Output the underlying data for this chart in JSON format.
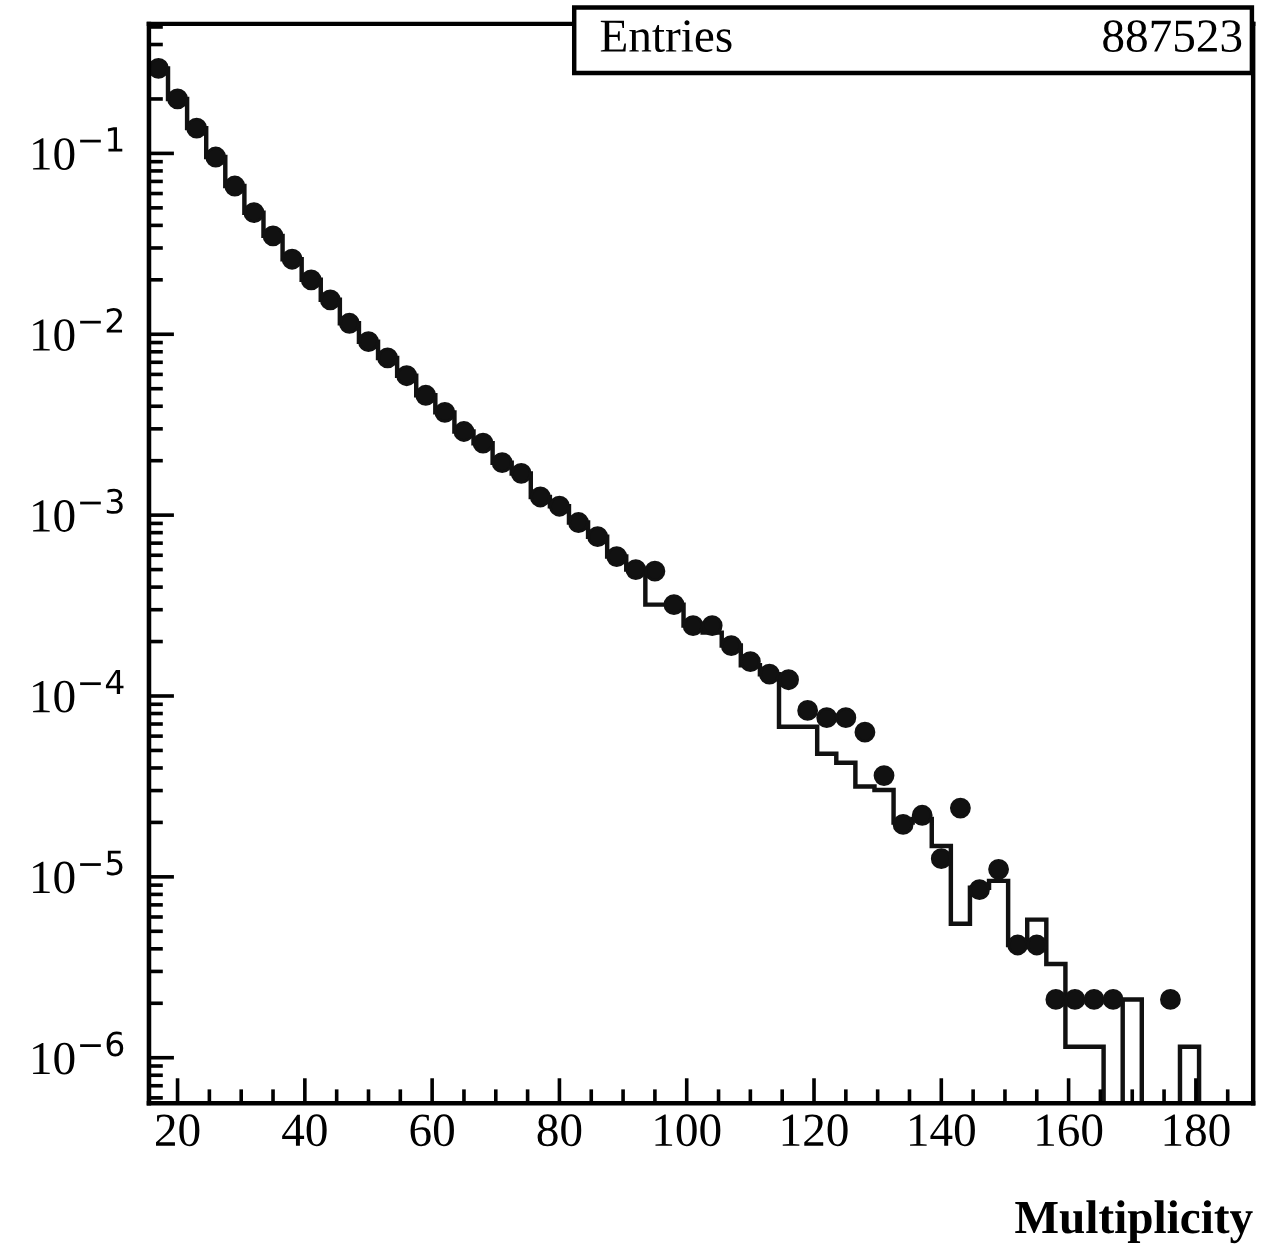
{
  "chart_data": {
    "type": "histogram",
    "xlabel": "Multiplicity",
    "annotations": [
      "Entries",
      "887523"
    ],
    "xlim": [
      15.5,
      189
    ],
    "ylim": [
      5.6e-07,
      0.52
    ],
    "log": "y",
    "grid": false,
    "legend": false,
    "xticks": [
      20,
      40,
      60,
      80,
      100,
      120,
      140,
      160,
      180
    ],
    "yticks": [
      {
        "value": 1e-06,
        "label": "10$^{−6}$"
      },
      {
        "value": 1e-05,
        "label": "10$^{−5}$"
      },
      {
        "value": 0.0001,
        "label": "10$^{−4}$"
      },
      {
        "value": 0.001,
        "label": "10$^{−3}$"
      },
      {
        "value": 0.01,
        "label": "10$^{−2}$"
      },
      {
        "value": 0.1,
        "label": "10$^{−1}$"
      }
    ],
    "series": [
      {
        "type": "histogram",
        "color": "#111111",
        "bins": [
          15.5,
          18.5,
          21.5,
          24.5,
          27.5,
          30.5,
          33.5,
          36.5,
          39.5,
          42.5,
          45.5,
          48.5,
          51.5,
          54.5,
          57.5,
          60.5,
          63.5,
          66.5,
          69.5,
          72.5,
          75.5,
          78.5,
          81.5,
          84.5,
          87.5,
          90.5,
          93.5,
          96.5,
          99.5,
          102.5,
          105.5,
          108.5,
          111.5,
          114.5,
          117.5,
          120.5,
          123.5,
          126.5,
          129.5,
          132.5,
          135.5,
          138.5,
          141.5,
          144.5,
          147.5,
          150.5,
          153.5,
          156.5,
          159.5,
          162.5,
          165.5,
          168.5,
          171.5,
          174.5,
          177.5,
          180.5,
          183.5
        ],
        "values": [
          0.295,
          0.2,
          0.138,
          0.0955,
          0.066,
          0.047,
          0.035,
          0.026,
          0.02,
          0.0155,
          0.0115,
          0.0091,
          0.0074,
          0.0059,
          0.0046,
          0.0037,
          0.0029,
          0.0025,
          0.00195,
          0.0017,
          0.00126,
          0.00112,
          0.00091,
          0.00076,
          0.00059,
          0.0005,
          0.00032,
          0.00032,
          0.000245,
          0.000224,
          0.00019,
          0.000148,
          0.000132,
          6.76e-05,
          6.76e-05,
          4.79e-05,
          4.27e-05,
          3.16e-05,
          3.02e-05,
          2e-05,
          2.09e-05,
          1.48e-05,
          5.5e-06,
          8.7e-06,
          9.5e-06,
          4.2e-06,
          5.8e-06,
          3.3e-06,
          1.15e-06,
          1.15e-06,
          null,
          2.1e-06,
          null,
          null,
          1.15e-06,
          null
        ]
      },
      {
        "type": "scatter",
        "color": "#111111",
        "marker": "circle",
        "x": [
          17,
          20,
          23,
          26,
          29,
          32,
          35,
          38,
          41,
          44,
          47,
          50,
          53,
          56,
          59,
          62,
          65,
          68,
          71,
          74,
          77,
          80,
          83,
          86,
          89,
          92,
          95,
          98,
          101,
          104,
          107,
          110,
          113,
          116,
          119,
          122,
          125,
          128,
          131,
          134,
          137,
          140,
          143,
          146,
          149,
          152,
          155,
          158,
          161,
          164,
          167,
          176
        ],
        "values": [
          0.295,
          0.2,
          0.138,
          0.0955,
          0.066,
          0.047,
          0.035,
          0.026,
          0.02,
          0.0155,
          0.0115,
          0.0091,
          0.0074,
          0.0059,
          0.0046,
          0.0037,
          0.0029,
          0.0025,
          0.00195,
          0.0017,
          0.00126,
          0.00112,
          0.00091,
          0.00076,
          0.00059,
          0.0005,
          0.00049,
          0.00032,
          0.000245,
          0.000245,
          0.00019,
          0.000155,
          0.000132,
          0.000123,
          8.32e-05,
          7.59e-05,
          7.59e-05,
          6.31e-05,
          3.63e-05,
          1.95e-05,
          2.19e-05,
          1.26e-05,
          2.4e-05,
          8.5e-06,
          1.1e-05,
          4.2e-06,
          4.2e-06,
          2.1e-06,
          2.1e-06,
          2.1e-06,
          2.1e-06,
          2.1e-06
        ]
      }
    ]
  }
}
